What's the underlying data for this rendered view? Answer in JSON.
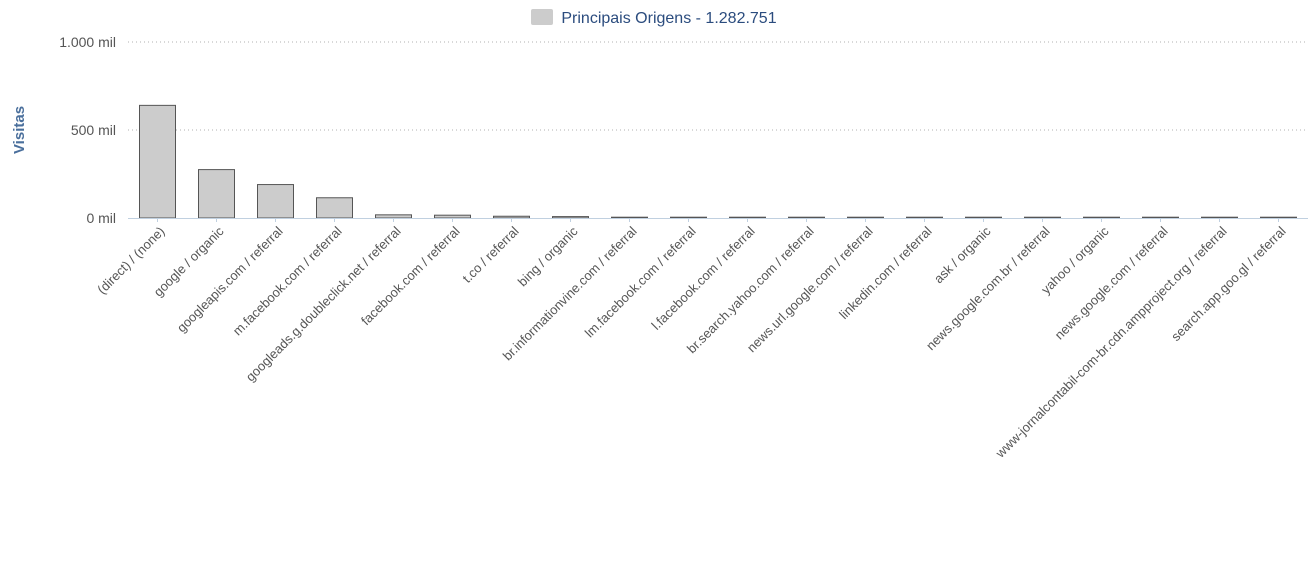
{
  "chart_data": {
    "type": "bar",
    "legend": {
      "label": "Principais Origens - 1.282.751",
      "color": "#cccccc"
    },
    "ylabel": "Visitas",
    "ylim": [
      0,
      1000000
    ],
    "yticks": [
      {
        "value": 0,
        "label": "0 mil"
      },
      {
        "value": 500000,
        "label": "500 mil"
      },
      {
        "value": 1000000,
        "label": "1.000 mil"
      }
    ],
    "grid": true,
    "categories": [
      "(direct) / (none)",
      "google / organic",
      "googleapis.com / referral",
      "m.facebook.com / referral",
      "googleads.g.doubleclick.net / referral",
      "facebook.com / referral",
      "t.co / referral",
      "bing / organic",
      "br.informationvine.com / referral",
      "lm.facebook.com / referral",
      "l.facebook.com / referral",
      "br.search.yahoo.com / referral",
      "news.url.google.com / referral",
      "linkedin.com / referral",
      "ask / organic",
      "news.google.com.br / referral",
      "yahoo / organic",
      "news.google.com / referral",
      "www-jornalcontabil-com-br.cdn.ampproject.org / referral",
      "search.app.goo.gl / referral"
    ],
    "values": [
      640000,
      275000,
      190000,
      115000,
      18000,
      16000,
      10000,
      8000,
      2000,
      1500,
      1200,
      1000,
      800,
      700,
      600,
      500,
      400,
      350,
      300,
      250
    ],
    "bar_color": "#cccccc",
    "bar_stroke": "#555555"
  }
}
